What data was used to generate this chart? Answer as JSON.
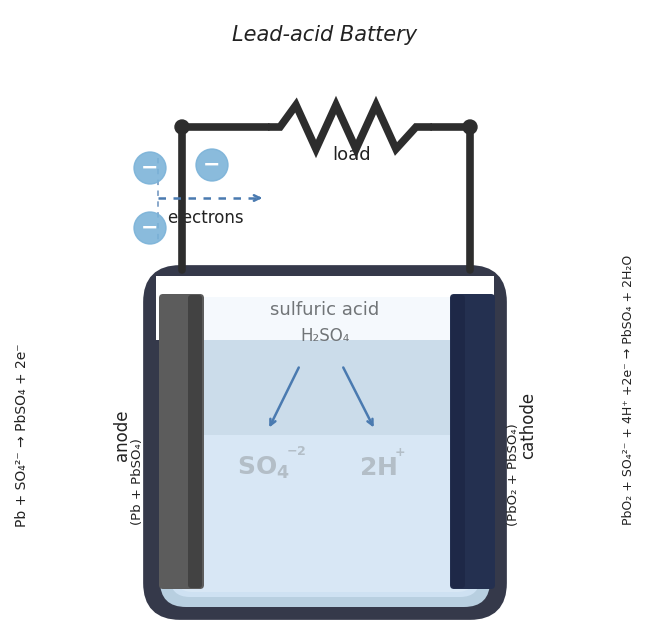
{
  "title": "Lead-acid Battery",
  "bg_color": "#ffffff",
  "wire_color": "#2d2d2d",
  "dot_color": "#2d2d2d",
  "outer_wall_color": "#35394a",
  "outer_wall_fill": "#35394a",
  "battery_fill": "#b8cfe0",
  "battery_fill_light": "#ccdff0",
  "battery_fill_lighter": "#ddeeff",
  "anode_dark": "#404040",
  "anode_mid": "#606060",
  "cathode_dark": "#1a2845",
  "cathode_mid": "#243358",
  "electron_fill": "#7ab2d8",
  "electron_text": "#ffffff",
  "arrow_color": "#4a7ab0",
  "text_color": "#222222",
  "load_label": "load",
  "electrons_label": "electrons",
  "acid_label": "sulfuric acid",
  "acid_formula": "H₂SO₄",
  "anode_label": "anode",
  "anode_material": "(Pb + PbSO₄)",
  "cathode_label": "cathode",
  "cathode_material": "(PbO₂ + PbSO₄)",
  "left_equation": "Pb + SO₄²⁻ → PbSO₄ + 2e⁻",
  "right_equation": "PbO₂ + SO₄²⁻ + 4H⁺ +2e⁻ → PbSO₄ + 2H₂O"
}
